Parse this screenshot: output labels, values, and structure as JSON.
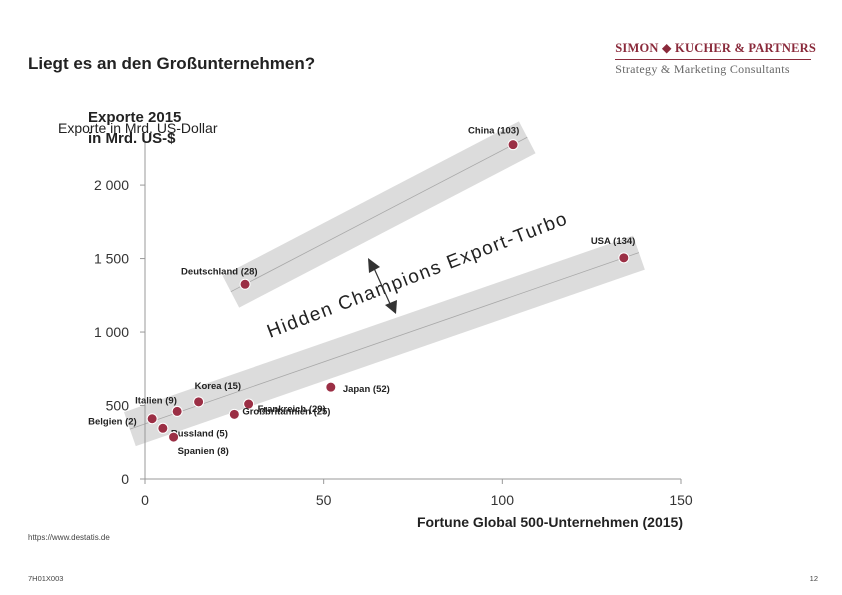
{
  "page": {
    "title": "Liegt es an den Großunternehmen?",
    "logo_top": "SIMON ◆ KUCHER & PARTNERS",
    "logo_bottom": "Strategy & Marketing Consultants",
    "source": "https://www.destatis.de",
    "doc_id": "7H01X003",
    "page_number": "12"
  },
  "chart_data": {
    "type": "scatter",
    "title": "",
    "ylabel_lines": [
      "Exporte 2015",
      "in Mrd. US-$"
    ],
    "ylabel_overlap": "Exporte in Mrd. US-Dollar",
    "xlabel": "Fortune Global 500-Unternehmen (2015)",
    "xlim": [
      0,
      150
    ],
    "ylim": [
      0,
      2300
    ],
    "xticks": [
      0,
      50,
      100,
      150
    ],
    "xtick_labels": [
      "0",
      "50",
      "100",
      "150"
    ],
    "yticks": [
      0,
      500,
      1000,
      1500,
      2000
    ],
    "ytick_labels": [
      "0",
      "500",
      "1 000",
      "1 500",
      "2 000"
    ],
    "grid": false,
    "point_color": "#9b2f45",
    "band_color": "#d8d8d8",
    "points": [
      {
        "label": "China (103)",
        "x": 103,
        "y": 2275
      },
      {
        "label": "USA (134)",
        "x": 134,
        "y": 1505
      },
      {
        "label": "Deutschland (28)",
        "x": 28,
        "y": 1325
      },
      {
        "label": "Japan (52)",
        "x": 52,
        "y": 625
      },
      {
        "label": "Korea (15)",
        "x": 15,
        "y": 525
      },
      {
        "label": "Frankreich (29)",
        "x": 29,
        "y": 510
      },
      {
        "label": "Italien (9)",
        "x": 9,
        "y": 460
      },
      {
        "label": "Großbritannien (25)",
        "x": 25,
        "y": 440
      },
      {
        "label": "Belgien (2)",
        "x": 2,
        "y": 410
      },
      {
        "label": "Russland (5)",
        "x": 5,
        "y": 345
      },
      {
        "label": "Spanien (8)",
        "x": 8,
        "y": 285
      }
    ],
    "bands": [
      {
        "name": "upper",
        "from": [
          28,
          1325
        ],
        "to": [
          103,
          2275
        ]
      },
      {
        "name": "lower",
        "from": [
          0,
          375
        ],
        "to": [
          134,
          1505
        ]
      }
    ],
    "annotation": "Hidden Champions Export-Turbo"
  }
}
